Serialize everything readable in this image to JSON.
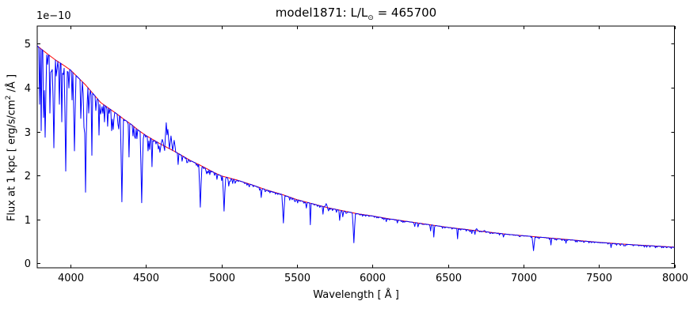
{
  "figure": {
    "title_prefix": "model1871: L/L",
    "title_odot": "⊙",
    "title_suffix": " = 465700",
    "xlabel": "Wavelength [ Å ]",
    "ylabel_prefix": "Flux at 1 kpc [ erg/s/cm",
    "ylabel_sup": "2",
    "ylabel_suffix": " /Å ]",
    "y_offset_text": "1e−10"
  },
  "chart_data": {
    "type": "line",
    "title": "model1871: L/L⊙ = 465700",
    "xlabel": "Wavelength [ Å ]",
    "ylabel": "Flux at 1 kpc [ erg/s/cm² /Å ]",
    "y_scale_factor": "1e-10",
    "xlim": [
      3780,
      8000
    ],
    "ylim": [
      -0.1,
      5.4
    ],
    "xticks": [
      4000,
      4500,
      5000,
      5500,
      6000,
      6500,
      7000,
      7500,
      8000
    ],
    "yticks": [
      0,
      1,
      2,
      3,
      4,
      5
    ],
    "grid": false,
    "legend": null,
    "series": [
      {
        "name": "model spectrum",
        "color": "#0000ff",
        "role": "spectrum"
      },
      {
        "name": "continuum",
        "color": "#ff0000",
        "role": "continuum"
      }
    ],
    "continuum_1e10": [
      [
        3780,
        4.95
      ],
      [
        3850,
        4.76
      ],
      [
        3900,
        4.63
      ],
      [
        3950,
        4.52
      ],
      [
        4000,
        4.4
      ],
      [
        4050,
        4.23
      ],
      [
        4100,
        4.06
      ],
      [
        4150,
        3.86
      ],
      [
        4200,
        3.66
      ],
      [
        4250,
        3.54
      ],
      [
        4300,
        3.42
      ],
      [
        4350,
        3.29
      ],
      [
        4400,
        3.17
      ],
      [
        4450,
        3.03
      ],
      [
        4500,
        2.91
      ],
      [
        4550,
        2.81
      ],
      [
        4600,
        2.71
      ],
      [
        4650,
        2.62
      ],
      [
        4700,
        2.53
      ],
      [
        4750,
        2.43
      ],
      [
        4800,
        2.33
      ],
      [
        4850,
        2.25
      ],
      [
        4900,
        2.16
      ],
      [
        4950,
        2.07
      ],
      [
        5000,
        1.99
      ],
      [
        5100,
        1.9
      ],
      [
        5200,
        1.79
      ],
      [
        5300,
        1.67
      ],
      [
        5400,
        1.57
      ],
      [
        5500,
        1.45
      ],
      [
        5600,
        1.36
      ],
      [
        5700,
        1.27
      ],
      [
        5800,
        1.2
      ],
      [
        5900,
        1.13
      ],
      [
        6000,
        1.08
      ],
      [
        6100,
        1.02
      ],
      [
        6200,
        0.97
      ],
      [
        6300,
        0.92
      ],
      [
        6400,
        0.87
      ],
      [
        6500,
        0.82
      ],
      [
        6600,
        0.78
      ],
      [
        6700,
        0.74
      ],
      [
        6800,
        0.7
      ],
      [
        6900,
        0.66
      ],
      [
        7000,
        0.63
      ],
      [
        7100,
        0.6
      ],
      [
        7200,
        0.57
      ],
      [
        7300,
        0.54
      ],
      [
        7400,
        0.51
      ],
      [
        7500,
        0.48
      ],
      [
        7600,
        0.455
      ],
      [
        7700,
        0.43
      ],
      [
        7800,
        0.41
      ],
      [
        7900,
        0.39
      ],
      [
        8000,
        0.37
      ]
    ],
    "absorption_lines_1e10": [
      [
        3798,
        3.62,
        1
      ],
      [
        3806,
        3.02,
        1
      ],
      [
        3820,
        3.32,
        1
      ],
      [
        3835,
        2.87,
        2
      ],
      [
        3864,
        3.42,
        1
      ],
      [
        3889,
        2.63,
        2
      ],
      [
        3926,
        3.62,
        1
      ],
      [
        3942,
        3.22,
        1
      ],
      [
        3970,
        2.1,
        2
      ],
      [
        4009,
        3.72,
        1
      ],
      [
        4026,
        2.56,
        2
      ],
      [
        4070,
        3.3,
        1
      ],
      [
        4089,
        3.1,
        1
      ],
      [
        4101,
        1.62,
        2
      ],
      [
        4121,
        3.42,
        1
      ],
      [
        4144,
        2.46,
        1
      ],
      [
        4169,
        3.48,
        1
      ],
      [
        4188,
        2.92,
        1
      ],
      [
        4226,
        3.22,
        1
      ],
      [
        4271,
        3.02,
        1
      ],
      [
        4340,
        1.4,
        2
      ],
      [
        4388,
        2.42,
        1
      ],
      [
        4438,
        2.86,
        1
      ],
      [
        4471,
        1.38,
        2
      ],
      [
        4513,
        2.56,
        1
      ],
      [
        4542,
        2.2,
        1
      ],
      [
        4713,
        2.25,
        1
      ],
      [
        4861,
        1.28,
        2
      ],
      [
        4922,
        2.02,
        1
      ],
      [
        5016,
        1.19,
        2
      ],
      [
        5048,
        1.76,
        1
      ],
      [
        5169,
        1.78,
        1
      ],
      [
        5262,
        1.5,
        1
      ],
      [
        5411,
        0.92,
        2
      ],
      [
        5560,
        1.26,
        1
      ],
      [
        5586,
        0.88,
        1
      ],
      [
        5675,
        1.12,
        1
      ],
      [
        5780,
        0.98,
        1
      ],
      [
        5801,
        1.06,
        1
      ],
      [
        5876,
        0.47,
        2
      ],
      [
        6090,
        0.95,
        1
      ],
      [
        6165,
        0.92,
        1
      ],
      [
        6280,
        0.84,
        1
      ],
      [
        6300,
        0.83,
        1
      ],
      [
        6387,
        0.74,
        1
      ],
      [
        6406,
        0.6,
        1
      ],
      [
        6563,
        0.56,
        1
      ],
      [
        6660,
        0.68,
        1
      ],
      [
        6678,
        0.66,
        1
      ],
      [
        6869,
        0.6,
        1
      ],
      [
        7065,
        0.29,
        2
      ],
      [
        7183,
        0.42,
        1
      ],
      [
        7281,
        0.46,
        1
      ],
      [
        7581,
        0.36,
        1
      ],
      [
        7726,
        0.4,
        1
      ]
    ],
    "emission_lines_1e10": [
      [
        4607,
        2.82
      ],
      [
        4634,
        3.2
      ],
      [
        4647,
        3.05
      ],
      [
        4665,
        2.9
      ],
      [
        4686,
        2.8
      ],
      [
        5696,
        1.36
      ],
      [
        6692,
        0.79
      ],
      [
        6744,
        0.75
      ]
    ],
    "noise_regions": [
      [
        3780,
        4350,
        0.45
      ],
      [
        4350,
        4700,
        0.3
      ],
      [
        4700,
        5100,
        0.14
      ],
      [
        5100,
        5900,
        0.07
      ],
      [
        5900,
        8000,
        0.04
      ]
    ]
  }
}
